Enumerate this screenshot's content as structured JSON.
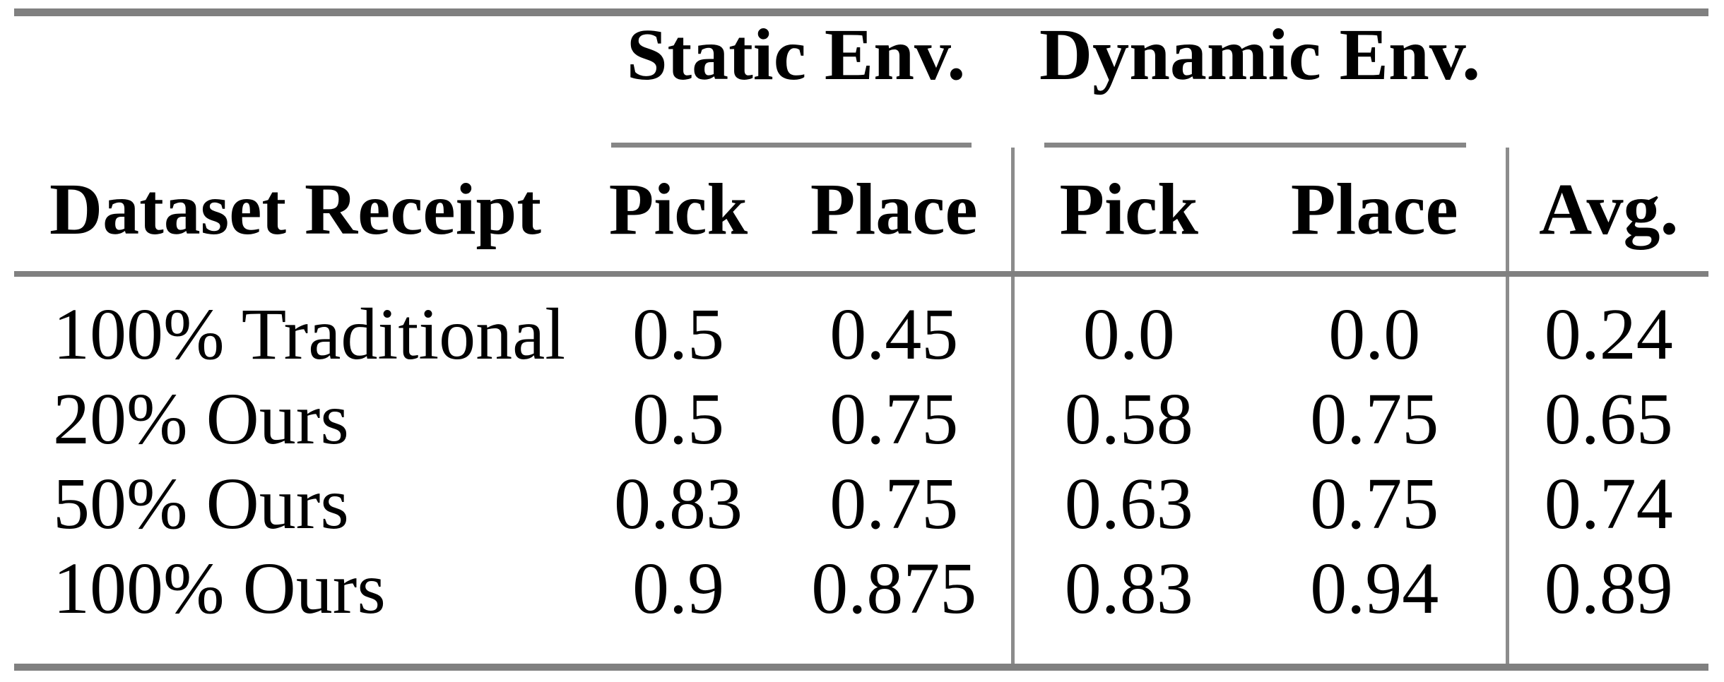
{
  "table": {
    "group_headers": [
      "Static Env.",
      "Dynamic Env."
    ],
    "columns": [
      "Dataset Receipt",
      "Pick",
      "Place",
      "Pick",
      "Place",
      "Avg."
    ],
    "rows": [
      {
        "label": "100% Traditional",
        "values": [
          "0.5",
          "0.45",
          "0.0",
          "0.0",
          "0.24"
        ]
      },
      {
        "label": "20% Ours",
        "values": [
          "0.5",
          "0.75",
          "0.58",
          "0.75",
          "0.65"
        ]
      },
      {
        "label": "50% Ours",
        "values": [
          "0.83",
          "0.75",
          "0.63",
          "0.75",
          "0.74"
        ]
      },
      {
        "label": "100% Ours",
        "values": [
          "0.9",
          "0.875",
          "0.83",
          "0.94",
          "0.89"
        ]
      }
    ],
    "colors": {
      "rule_gray": "#808080",
      "cmidrule_gray": "#868686",
      "vline_gray": "#8c8c8c",
      "text": "#000000",
      "background": "#ffffff"
    }
  }
}
